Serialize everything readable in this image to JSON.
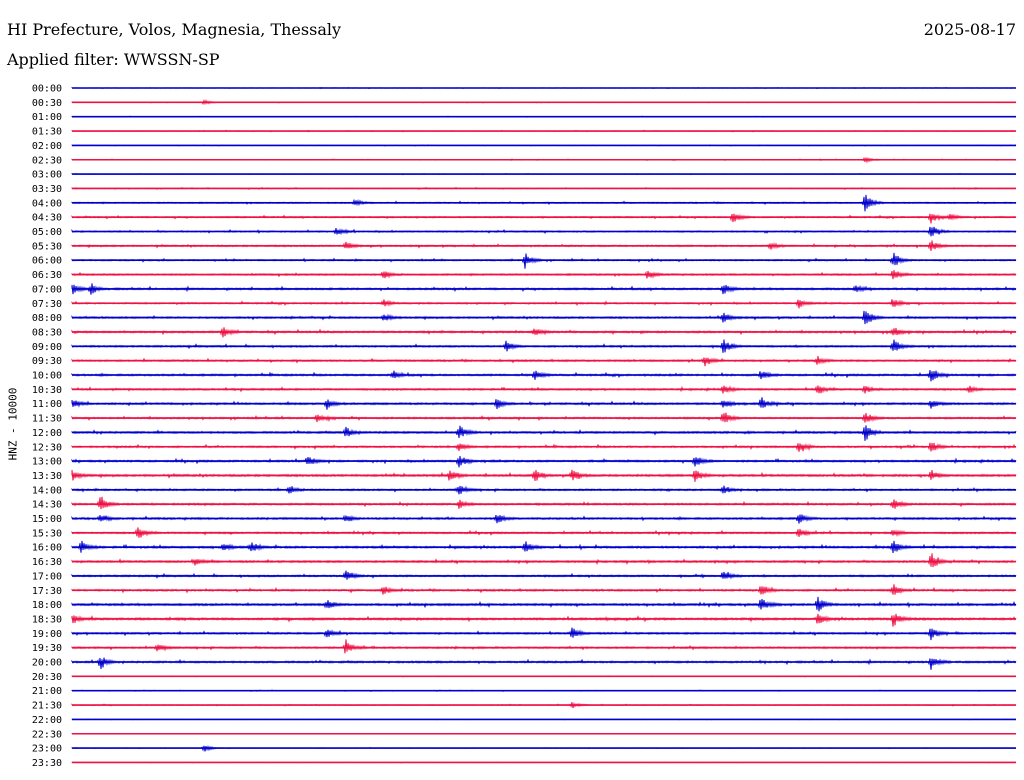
{
  "header": {
    "station": "HI Prefecture, Volos, Magnesia, Thessaly",
    "date": "2025-08-17",
    "filter": "Applied filter: WWSSN-SP"
  },
  "colors": {
    "even_row": "#0000cc",
    "odd_row": "#ee1144",
    "background": "#ffffff",
    "text": "#000000"
  },
  "chart_data": {
    "type": "line",
    "ylabel": "HNZ - 10000",
    "row_interval_minutes": 30,
    "categories": [
      "00:00",
      "00:30",
      "01:00",
      "01:30",
      "02:00",
      "02:30",
      "03:00",
      "03:30",
      "04:00",
      "04:30",
      "05:00",
      "05:30",
      "06:00",
      "06:30",
      "07:00",
      "07:30",
      "08:00",
      "08:30",
      "09:00",
      "09:30",
      "10:00",
      "10:30",
      "11:00",
      "11:30",
      "12:00",
      "12:30",
      "13:00",
      "13:30",
      "14:00",
      "14:30",
      "15:00",
      "15:30",
      "16:00",
      "16:30",
      "17:00",
      "17:30",
      "18:00",
      "18:30",
      "19:00",
      "19:30",
      "20:00",
      "20:30",
      "21:00",
      "21:30",
      "22:00",
      "22:30",
      "23:00",
      "23:30"
    ],
    "noise_level": [
      0.15,
      0.15,
      0.15,
      0.2,
      0.15,
      0.2,
      0.15,
      0.25,
      0.4,
      0.45,
      0.45,
      0.5,
      0.45,
      0.5,
      0.6,
      0.5,
      0.55,
      0.6,
      0.55,
      0.55,
      0.6,
      0.55,
      0.6,
      0.55,
      0.6,
      0.55,
      0.6,
      0.65,
      0.55,
      0.6,
      0.6,
      0.55,
      0.65,
      0.6,
      0.55,
      0.6,
      0.65,
      0.7,
      0.55,
      0.55,
      0.6,
      0.15,
      0.2,
      0.25,
      0.1,
      0.1,
      0.15,
      0.1
    ],
    "events": [
      [],
      [
        {
          "t": 0.14,
          "a": 0.6
        }
      ],
      [],
      [],
      [],
      [
        {
          "t": 0.84,
          "a": 0.8
        }
      ],
      [],
      [],
      [
        {
          "t": 0.3,
          "a": 0.8
        },
        {
          "t": 0.84,
          "a": 2.6
        }
      ],
      [
        {
          "t": 0.7,
          "a": 1.8
        },
        {
          "t": 0.91,
          "a": 1.6
        },
        {
          "t": 0.93,
          "a": 1.0
        }
      ],
      [
        {
          "t": 0.28,
          "a": 1.0
        },
        {
          "t": 0.91,
          "a": 1.8
        }
      ],
      [
        {
          "t": 0.29,
          "a": 1.2
        },
        {
          "t": 0.74,
          "a": 1.0
        },
        {
          "t": 0.91,
          "a": 1.6
        }
      ],
      [
        {
          "t": 0.48,
          "a": 2.0
        },
        {
          "t": 0.87,
          "a": 2.2
        }
      ],
      [
        {
          "t": 0.33,
          "a": 1.2
        },
        {
          "t": 0.61,
          "a": 1.2
        },
        {
          "t": 0.87,
          "a": 1.6
        }
      ],
      [
        {
          "t": 0.0,
          "a": 1.6
        },
        {
          "t": 0.02,
          "a": 1.4
        },
        {
          "t": 0.69,
          "a": 1.5
        },
        {
          "t": 0.83,
          "a": 1.0
        }
      ],
      [
        {
          "t": 0.33,
          "a": 1.0
        },
        {
          "t": 0.77,
          "a": 1.2
        },
        {
          "t": 0.87,
          "a": 1.4
        }
      ],
      [
        {
          "t": 0.33,
          "a": 1.0
        },
        {
          "t": 0.69,
          "a": 1.4
        },
        {
          "t": 0.84,
          "a": 2.6
        }
      ],
      [
        {
          "t": 0.16,
          "a": 1.6
        },
        {
          "t": 0.49,
          "a": 1.0
        },
        {
          "t": 0.87,
          "a": 1.4
        }
      ],
      [
        {
          "t": 0.46,
          "a": 1.4
        },
        {
          "t": 0.69,
          "a": 2.4
        },
        {
          "t": 0.87,
          "a": 2.0
        }
      ],
      [
        {
          "t": 0.67,
          "a": 1.6
        },
        {
          "t": 0.79,
          "a": 1.2
        }
      ],
      [
        {
          "t": 0.34,
          "a": 1.2
        },
        {
          "t": 0.49,
          "a": 1.4
        },
        {
          "t": 0.73,
          "a": 1.4
        },
        {
          "t": 0.91,
          "a": 2.0
        }
      ],
      [
        {
          "t": 0.69,
          "a": 1.4
        },
        {
          "t": 0.79,
          "a": 1.4
        },
        {
          "t": 0.84,
          "a": 1.0
        },
        {
          "t": 0.95,
          "a": 1.0
        }
      ],
      [
        {
          "t": 0.0,
          "a": 1.4
        },
        {
          "t": 0.27,
          "a": 1.4
        },
        {
          "t": 0.45,
          "a": 1.4
        },
        {
          "t": 0.69,
          "a": 1.2
        },
        {
          "t": 0.73,
          "a": 1.8
        },
        {
          "t": 0.91,
          "a": 1.2
        }
      ],
      [
        {
          "t": 0.26,
          "a": 1.2
        },
        {
          "t": 0.69,
          "a": 2.0
        },
        {
          "t": 0.84,
          "a": 1.8
        }
      ],
      [
        {
          "t": 0.29,
          "a": 1.4
        },
        {
          "t": 0.41,
          "a": 2.0
        },
        {
          "t": 0.84,
          "a": 2.6
        }
      ],
      [
        {
          "t": 0.41,
          "a": 1.2
        },
        {
          "t": 0.77,
          "a": 1.4
        },
        {
          "t": 0.91,
          "a": 1.6
        }
      ],
      [
        {
          "t": 0.25,
          "a": 1.4
        },
        {
          "t": 0.41,
          "a": 1.8
        },
        {
          "t": 0.66,
          "a": 1.6
        }
      ],
      [
        {
          "t": 0.0,
          "a": 1.4
        },
        {
          "t": 0.4,
          "a": 1.6
        },
        {
          "t": 0.49,
          "a": 2.0
        },
        {
          "t": 0.53,
          "a": 1.6
        },
        {
          "t": 0.66,
          "a": 1.6
        },
        {
          "t": 0.91,
          "a": 1.4
        }
      ],
      [
        {
          "t": 0.23,
          "a": 1.0
        },
        {
          "t": 0.41,
          "a": 1.6
        },
        {
          "t": 0.69,
          "a": 1.2
        }
      ],
      [
        {
          "t": 0.03,
          "a": 2.4
        },
        {
          "t": 0.41,
          "a": 1.2
        },
        {
          "t": 0.87,
          "a": 1.6
        }
      ],
      [
        {
          "t": 0.03,
          "a": 1.2
        },
        {
          "t": 0.29,
          "a": 1.2
        },
        {
          "t": 0.45,
          "a": 1.6
        },
        {
          "t": 0.77,
          "a": 1.4
        }
      ],
      [
        {
          "t": 0.07,
          "a": 1.8
        },
        {
          "t": 0.77,
          "a": 1.2
        },
        {
          "t": 0.87,
          "a": 1.0
        }
      ],
      [
        {
          "t": 0.01,
          "a": 1.6
        },
        {
          "t": 0.16,
          "a": 1.2
        },
        {
          "t": 0.19,
          "a": 1.4
        },
        {
          "t": 0.48,
          "a": 1.6
        },
        {
          "t": 0.87,
          "a": 1.8
        }
      ],
      [
        {
          "t": 0.13,
          "a": 1.0
        },
        {
          "t": 0.91,
          "a": 2.4
        }
      ],
      [
        {
          "t": 0.29,
          "a": 1.4
        },
        {
          "t": 0.69,
          "a": 1.6
        }
      ],
      [
        {
          "t": 0.33,
          "a": 1.2
        },
        {
          "t": 0.73,
          "a": 1.6
        },
        {
          "t": 0.87,
          "a": 1.6
        }
      ],
      [
        {
          "t": 0.27,
          "a": 1.4
        },
        {
          "t": 0.73,
          "a": 1.8
        },
        {
          "t": 0.79,
          "a": 2.0
        }
      ],
      [
        {
          "t": 0.0,
          "a": 1.4
        },
        {
          "t": 0.79,
          "a": 1.4
        },
        {
          "t": 0.87,
          "a": 2.0
        }
      ],
      [
        {
          "t": 0.27,
          "a": 1.2
        },
        {
          "t": 0.53,
          "a": 1.6
        },
        {
          "t": 0.91,
          "a": 1.6
        }
      ],
      [
        {
          "t": 0.09,
          "a": 1.4
        },
        {
          "t": 0.29,
          "a": 1.8
        }
      ],
      [
        {
          "t": 0.03,
          "a": 1.8
        },
        {
          "t": 0.91,
          "a": 2.0
        }
      ],
      [],
      [],
      [
        {
          "t": 0.53,
          "a": 0.8
        }
      ],
      [],
      [],
      [
        {
          "t": 0.14,
          "a": 1.0
        }
      ],
      []
    ]
  }
}
